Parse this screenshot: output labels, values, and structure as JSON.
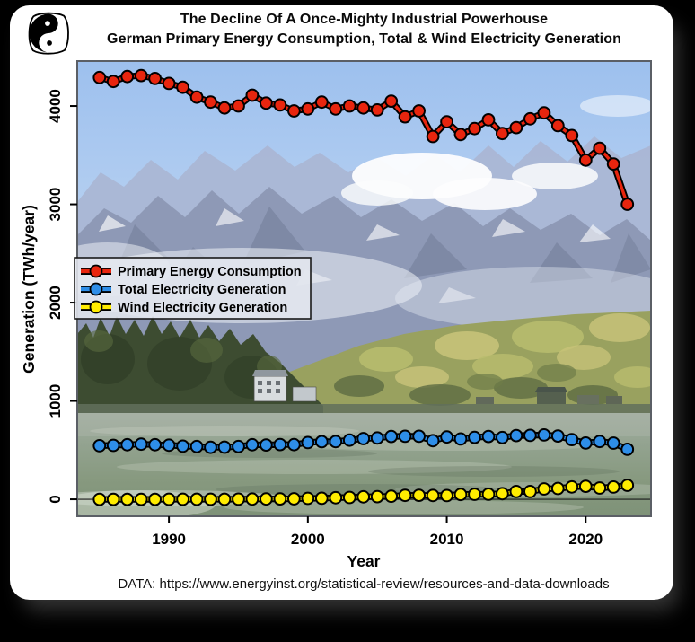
{
  "title": {
    "line1": "The Decline Of A Once-Mighty Industrial Powerhouse",
    "line2": "German Primary Energy Consumption, Total & Wind Electricity Generation"
  },
  "footer": {
    "source": "DATA: https://www.energyinst.org/statistical-review/resources-and-data-downloads"
  },
  "logo": {
    "name": "penguin-yin-yang-logo"
  },
  "chart_data": {
    "type": "line",
    "xlabel": "Year",
    "ylabel": "Generation (TWh/year)",
    "xlim": [
      1983.4,
      2024.7
    ],
    "ylim": [
      -173,
      4457
    ],
    "xticks": [
      1990,
      2000,
      2010,
      2020
    ],
    "yticks": [
      0,
      1000,
      2000,
      3000,
      4000
    ],
    "grid": false,
    "legend_position": "middle-left",
    "background": "photo of an alpine lake (Eibsee) with Zugspitze mountains, autumn forest and water",
    "zero_baseline": true,
    "x": [
      1985,
      1986,
      1987,
      1988,
      1989,
      1990,
      1991,
      1992,
      1993,
      1994,
      1995,
      1996,
      1997,
      1998,
      1999,
      2000,
      2001,
      2002,
      2003,
      2004,
      2005,
      2006,
      2007,
      2008,
      2009,
      2010,
      2011,
      2012,
      2013,
      2014,
      2015,
      2016,
      2017,
      2018,
      2019,
      2020,
      2021,
      2022,
      2023
    ],
    "series": [
      {
        "name": "Primary Energy Consumption",
        "color": "#e8250e",
        "values": [
          4290,
          4250,
          4300,
          4310,
          4280,
          4230,
          4190,
          4090,
          4040,
          3980,
          4000,
          4110,
          4030,
          4010,
          3950,
          3970,
          4040,
          3970,
          4000,
          3980,
          3960,
          4050,
          3890,
          3950,
          3690,
          3840,
          3710,
          3770,
          3860,
          3720,
          3780,
          3870,
          3930,
          3800,
          3700,
          3450,
          3570,
          3410,
          3000
        ]
      },
      {
        "name": "Total Electricity Generation",
        "color": "#2e8ee8",
        "values": [
          545,
          548,
          555,
          560,
          555,
          550,
          540,
          537,
          528,
          530,
          537,
          555,
          552,
          557,
          556,
          577,
          586,
          587,
          601,
          617,
          623,
          639,
          641,
          641,
          596,
          633,
          613,
          630,
          639,
          628,
          648,
          650,
          654,
          643,
          607,
          572,
          588,
          571,
          508
        ]
      },
      {
        "name": "Wind Electricity Generation",
        "color": "#ffec00",
        "values": [
          0,
          0,
          0,
          0,
          0,
          0.1,
          0.1,
          0.3,
          0.6,
          0.9,
          1.5,
          2,
          2.9,
          4.5,
          5.5,
          9.5,
          10.5,
          15.8,
          18.7,
          25.5,
          27.2,
          30.7,
          39.7,
          40.6,
          38.6,
          37.8,
          48.9,
          50.7,
          51.7,
          57.4,
          79.2,
          78.6,
          105.7,
          110,
          126,
          132,
          114.5,
          125,
          142
        ]
      }
    ]
  }
}
